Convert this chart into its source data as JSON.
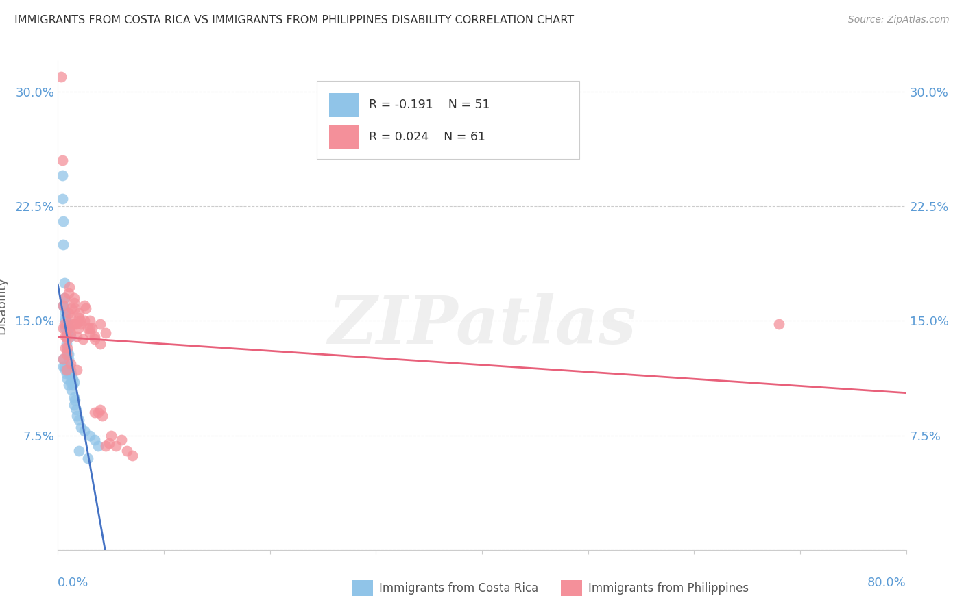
{
  "title": "IMMIGRANTS FROM COSTA RICA VS IMMIGRANTS FROM PHILIPPINES DISABILITY CORRELATION CHART",
  "source": "Source: ZipAtlas.com",
  "ylabel": "Disability",
  "yticks": [
    0.0,
    0.075,
    0.15,
    0.225,
    0.3
  ],
  "ytick_labels": [
    "",
    "7.5%",
    "15.0%",
    "22.5%",
    "30.0%"
  ],
  "xlim": [
    0.0,
    0.8
  ],
  "ylim": [
    0.0,
    0.32
  ],
  "legend_r1": "R = -0.191",
  "legend_n1": "N = 51",
  "legend_r2": "R = 0.024",
  "legend_n2": "N = 61",
  "legend_label1": "Immigrants from Costa Rica",
  "legend_label2": "Immigrants from Philippines",
  "color_cr": "#90C4E8",
  "color_ph": "#F4909A",
  "color_trend_cr": "#4472C4",
  "color_trend_ph": "#E8607A",
  "color_axis_labels": "#5B9BD5",
  "color_title": "#404040",
  "background_color": "#FFFFFF",
  "grid_color": "#CCCCCC",
  "watermark": "ZIPatlas",
  "cr_x": [
    0.004,
    0.004,
    0.005,
    0.005,
    0.005,
    0.005,
    0.006,
    0.006,
    0.006,
    0.007,
    0.007,
    0.007,
    0.007,
    0.008,
    0.008,
    0.008,
    0.008,
    0.009,
    0.009,
    0.009,
    0.01,
    0.01,
    0.01,
    0.011,
    0.011,
    0.012,
    0.012,
    0.013,
    0.013,
    0.014,
    0.014,
    0.015,
    0.015,
    0.016,
    0.017,
    0.018,
    0.02,
    0.022,
    0.025,
    0.03,
    0.035,
    0.038,
    0.005,
    0.006,
    0.007,
    0.009,
    0.01,
    0.012,
    0.015,
    0.02,
    0.028
  ],
  "cr_y": [
    0.245,
    0.23,
    0.215,
    0.2,
    0.125,
    0.12,
    0.175,
    0.165,
    0.12,
    0.155,
    0.15,
    0.145,
    0.118,
    0.148,
    0.14,
    0.135,
    0.115,
    0.142,
    0.13,
    0.112,
    0.128,
    0.125,
    0.108,
    0.12,
    0.115,
    0.118,
    0.11,
    0.115,
    0.105,
    0.112,
    0.108,
    0.11,
    0.1,
    0.098,
    0.092,
    0.088,
    0.085,
    0.08,
    0.078,
    0.075,
    0.072,
    0.068,
    0.16,
    0.158,
    0.152,
    0.148,
    0.145,
    0.14,
    0.095,
    0.065,
    0.06
  ],
  "ph_x": [
    0.003,
    0.004,
    0.005,
    0.005,
    0.006,
    0.006,
    0.007,
    0.007,
    0.008,
    0.008,
    0.009,
    0.009,
    0.01,
    0.01,
    0.011,
    0.011,
    0.012,
    0.012,
    0.013,
    0.014,
    0.015,
    0.015,
    0.016,
    0.017,
    0.018,
    0.019,
    0.02,
    0.021,
    0.022,
    0.025,
    0.026,
    0.028,
    0.03,
    0.032,
    0.035,
    0.038,
    0.04,
    0.042,
    0.045,
    0.048,
    0.05,
    0.055,
    0.06,
    0.065,
    0.07,
    0.68,
    0.005,
    0.008,
    0.012,
    0.018,
    0.024,
    0.03,
    0.035,
    0.04,
    0.015,
    0.02,
    0.025,
    0.03,
    0.035,
    0.04,
    0.045
  ],
  "ph_y": [
    0.31,
    0.255,
    0.16,
    0.145,
    0.165,
    0.148,
    0.14,
    0.132,
    0.128,
    0.14,
    0.138,
    0.132,
    0.168,
    0.155,
    0.145,
    0.172,
    0.152,
    0.142,
    0.158,
    0.148,
    0.162,
    0.148,
    0.158,
    0.148,
    0.14,
    0.145,
    0.152,
    0.15,
    0.148,
    0.15,
    0.158,
    0.145,
    0.15,
    0.145,
    0.09,
    0.09,
    0.092,
    0.088,
    0.068,
    0.07,
    0.075,
    0.068,
    0.072,
    0.065,
    0.062,
    0.148,
    0.125,
    0.118,
    0.122,
    0.118,
    0.138,
    0.142,
    0.138,
    0.135,
    0.165,
    0.155,
    0.16,
    0.145,
    0.14,
    0.148,
    0.142
  ]
}
